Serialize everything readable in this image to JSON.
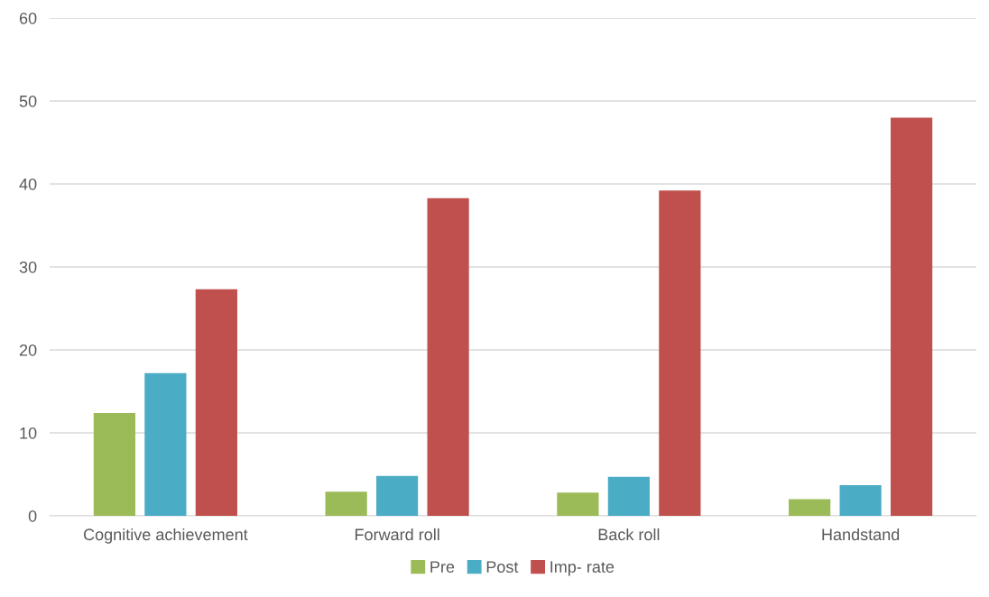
{
  "chart_data": {
    "type": "bar",
    "categories": [
      "Cognitive achievement",
      "Forward roll",
      "Back roll",
      "Handstand"
    ],
    "series": [
      {
        "name": "Pre",
        "color": "#9bbb59",
        "values": [
          12.4,
          2.9,
          2.8,
          2.0
        ]
      },
      {
        "name": "Post",
        "color": "#4bacc6",
        "values": [
          17.2,
          4.8,
          4.7,
          3.7
        ]
      },
      {
        "name": "Imp- rate",
        "color": "#c0504d",
        "values": [
          27.3,
          38.3,
          39.2,
          48.0
        ]
      }
    ],
    "ylim": [
      0,
      60
    ],
    "yticks": [
      0,
      10,
      20,
      30,
      40,
      50,
      60
    ],
    "grid": "y",
    "legend": "bottom"
  }
}
